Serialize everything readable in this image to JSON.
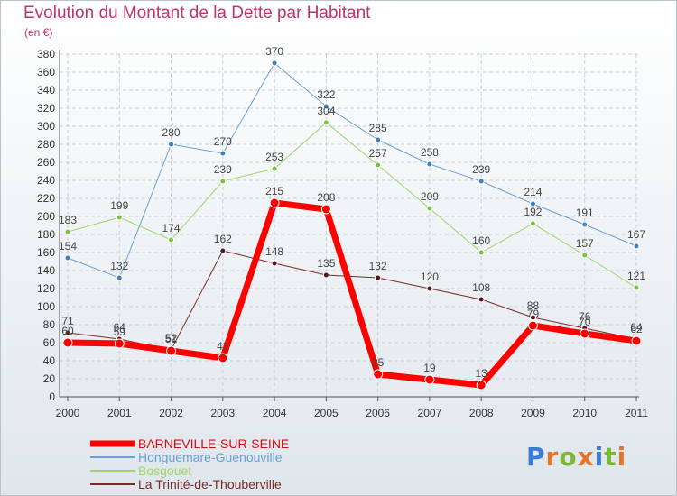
{
  "title": "Evolution du Montant de la Dette par Habitant",
  "unit": "(en €)",
  "logo": [
    "P",
    "r",
    "o",
    "x",
    "i",
    "t",
    "i"
  ],
  "logo_colors": [
    "#3a7bd5",
    "#e8742a",
    "#7fb63a",
    "#e8742a",
    "#3a7bd5",
    "#7fb63a",
    "#e8742a"
  ],
  "chart_data": {
    "type": "line",
    "x": [
      "2000",
      "2001",
      "2002",
      "2003",
      "2004",
      "2005",
      "2006",
      "2007",
      "2008",
      "2009",
      "2010",
      "2011"
    ],
    "ylim": [
      0,
      380
    ],
    "yticks": [
      0,
      20,
      40,
      60,
      80,
      100,
      120,
      140,
      160,
      180,
      200,
      220,
      240,
      260,
      280,
      300,
      320,
      340,
      360,
      380
    ],
    "grid": true,
    "legend": "bottom-left",
    "series": [
      {
        "name": "Honguemare-Guenouville",
        "color": "#6a9fd4",
        "marker": "#3f7fc0",
        "width": 1,
        "values": [
          154,
          132,
          280,
          270,
          370,
          322,
          285,
          258,
          239,
          214,
          191,
          167
        ],
        "labels": [
          "154",
          "132",
          "280",
          "270",
          "370",
          "322",
          "285",
          "258",
          "239",
          "214",
          "191",
          "167"
        ]
      },
      {
        "name": "Bosgouet",
        "color": "#9ed56b",
        "marker": "#7dc140",
        "width": 1,
        "values": [
          183,
          199,
          174,
          239,
          253,
          304,
          257,
          209,
          160,
          192,
          157,
          121
        ],
        "labels": [
          "183",
          "199",
          "174",
          "239",
          "253",
          "304",
          "257",
          "209",
          "160",
          "192",
          "157",
          "121"
        ]
      },
      {
        "name": "La Trinité-de-Thouberville",
        "color": "#7b2a2a",
        "marker": "#5a1414",
        "width": 1,
        "values": [
          71,
          64,
          52,
          162,
          148,
          135,
          132,
          120,
          108,
          88,
          76,
          64
        ],
        "labels": [
          "71",
          "64",
          "52",
          "162",
          "148",
          "135",
          "132",
          "120",
          "108",
          "88",
          "76",
          "64"
        ]
      },
      {
        "name": "BARNEVILLE-SUR-SEINE",
        "color": "#ff0000",
        "marker": "#ff0000",
        "width": 7,
        "values": [
          60,
          59,
          51,
          43,
          215,
          208,
          25,
          19,
          13,
          79,
          70,
          62
        ],
        "labels": [
          "60",
          "59",
          "51",
          "43",
          "215",
          "208",
          "25",
          "19",
          "13",
          "79",
          "70",
          "62"
        ]
      }
    ]
  }
}
